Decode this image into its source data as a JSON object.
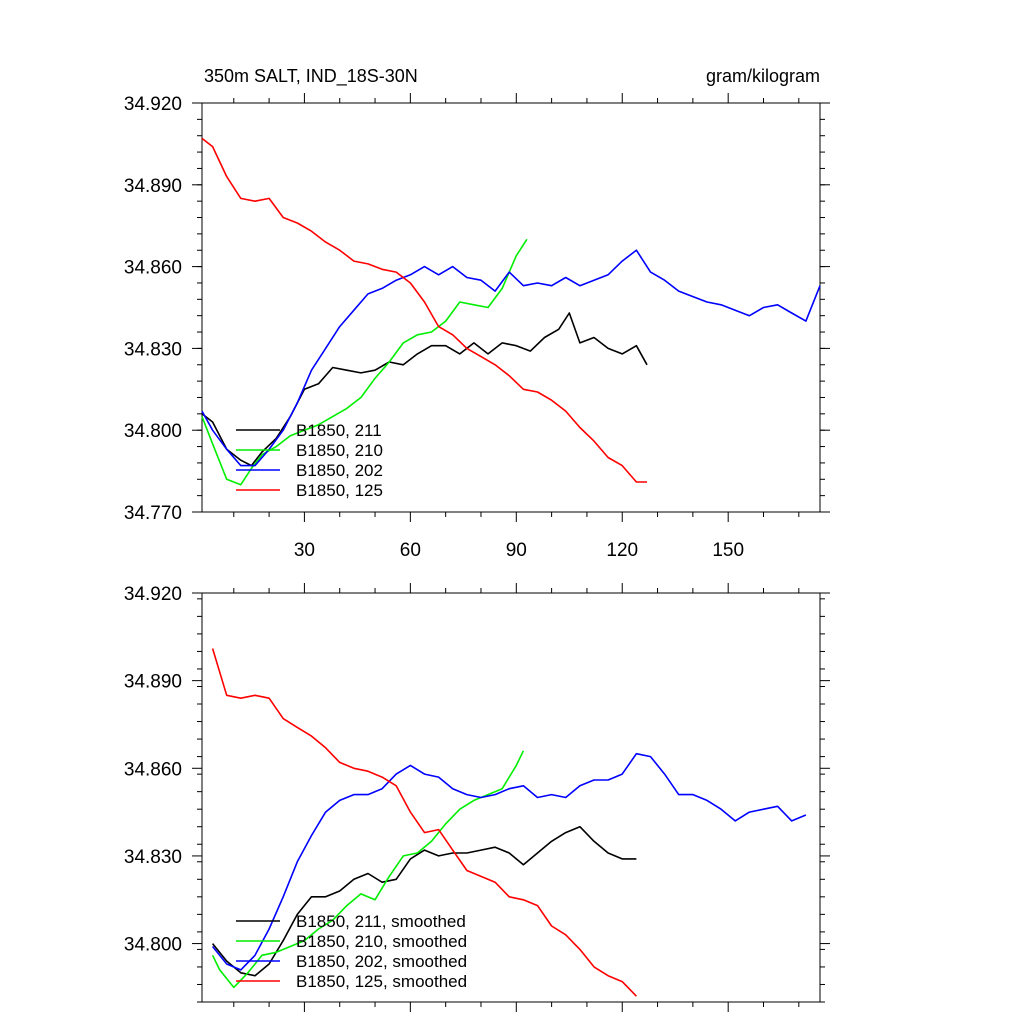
{
  "figure": {
    "title": "350m SALT, IND_18S-30N",
    "units": "gram/kilogram"
  },
  "colors": {
    "B1850_211": "#000000",
    "B1850_210": "#00ee00",
    "B1850_202": "#0000ff",
    "B1850_125": "#ff0000"
  },
  "chart_data": [
    {
      "type": "line",
      "panel": "top",
      "xlim": [
        1,
        176
      ],
      "ylim": [
        34.77,
        34.92
      ],
      "xticks": [
        30,
        60,
        90,
        120,
        150
      ],
      "xtick_labels": [
        "30",
        "60",
        "90",
        "120",
        "150"
      ],
      "yticks": [
        34.77,
        34.8,
        34.83,
        34.86,
        34.89,
        34.92
      ],
      "ytick_labels": [
        "34.770",
        "34.800",
        "34.830",
        "34.860",
        "34.890",
        "34.920"
      ],
      "legend_position": "bottom-left",
      "series": [
        {
          "name": "B1850, 211",
          "color": "#000000",
          "x": [
            1,
            4,
            8,
            12,
            15,
            18,
            22,
            26,
            30,
            34,
            38,
            42,
            46,
            50,
            54,
            58,
            62,
            66,
            70,
            74,
            78,
            82,
            86,
            90,
            94,
            98,
            102,
            105,
            108,
            112,
            116,
            120,
            124,
            127
          ],
          "y": [
            34.806,
            34.803,
            34.793,
            34.789,
            34.787,
            34.792,
            34.797,
            34.805,
            34.815,
            34.817,
            34.823,
            34.822,
            34.821,
            34.822,
            34.825,
            34.824,
            34.828,
            34.831,
            34.831,
            34.828,
            34.832,
            34.828,
            34.832,
            34.831,
            34.829,
            34.834,
            34.837,
            34.843,
            34.832,
            34.834,
            34.83,
            34.828,
            34.831,
            34.824
          ]
        },
        {
          "name": "B1850, 210",
          "color": "#00ee00",
          "x": [
            1,
            4,
            8,
            12,
            15,
            18,
            22,
            26,
            30,
            34,
            38,
            42,
            46,
            50,
            54,
            58,
            62,
            66,
            70,
            74,
            78,
            82,
            86,
            90,
            93
          ],
          "y": [
            34.805,
            34.795,
            34.782,
            34.78,
            34.786,
            34.791,
            34.794,
            34.798,
            34.8,
            34.802,
            34.805,
            34.808,
            34.812,
            34.819,
            34.825,
            34.832,
            34.835,
            34.836,
            34.84,
            34.847,
            34.846,
            34.845,
            34.852,
            34.864,
            34.87
          ]
        },
        {
          "name": "B1850, 202",
          "color": "#0000ff",
          "x": [
            1,
            4,
            8,
            12,
            16,
            20,
            24,
            28,
            32,
            36,
            40,
            44,
            48,
            52,
            56,
            60,
            64,
            68,
            72,
            76,
            80,
            84,
            88,
            92,
            96,
            100,
            104,
            108,
            112,
            116,
            120,
            124,
            128,
            132,
            136,
            140,
            144,
            148,
            152,
            156,
            160,
            164,
            168,
            172,
            176
          ],
          "y": [
            34.807,
            34.8,
            34.793,
            34.787,
            34.787,
            34.793,
            34.8,
            34.81,
            34.822,
            34.83,
            34.838,
            34.844,
            34.85,
            34.852,
            34.855,
            34.857,
            34.86,
            34.857,
            34.86,
            34.856,
            34.855,
            34.851,
            34.858,
            34.853,
            34.854,
            34.853,
            34.856,
            34.853,
            34.855,
            34.857,
            34.862,
            34.866,
            34.858,
            34.855,
            34.851,
            34.849,
            34.847,
            34.846,
            34.844,
            34.842,
            34.845,
            34.846,
            34.843,
            34.84,
            34.853
          ]
        },
        {
          "name": "B1850, 125",
          "color": "#ff0000",
          "x": [
            1,
            4,
            8,
            12,
            16,
            20,
            24,
            28,
            32,
            36,
            40,
            44,
            48,
            52,
            56,
            60,
            64,
            68,
            72,
            76,
            80,
            84,
            88,
            92,
            96,
            100,
            104,
            108,
            112,
            116,
            120,
            124,
            127
          ],
          "y": [
            34.907,
            34.904,
            34.893,
            34.885,
            34.884,
            34.885,
            34.878,
            34.876,
            34.873,
            34.869,
            34.866,
            34.862,
            34.861,
            34.859,
            34.858,
            34.854,
            34.847,
            34.838,
            34.835,
            34.83,
            34.827,
            34.824,
            34.82,
            34.815,
            34.814,
            34.811,
            34.807,
            34.801,
            34.796,
            34.79,
            34.787,
            34.781,
            34.781
          ]
        }
      ]
    },
    {
      "type": "line",
      "panel": "bottom",
      "xlim": [
        1,
        176
      ],
      "ylim": [
        34.78,
        34.92
      ],
      "xticks": [
        30,
        60,
        90,
        120,
        150
      ],
      "yticks": [
        34.8,
        34.83,
        34.86,
        34.89,
        34.92
      ],
      "ytick_labels": [
        "34.800",
        "34.830",
        "34.860",
        "34.890",
        "34.920"
      ],
      "legend_position": "bottom-left",
      "series": [
        {
          "name": "B1850, 211, smoothed",
          "color": "#000000",
          "x": [
            4,
            8,
            12,
            16,
            20,
            24,
            28,
            32,
            36,
            40,
            44,
            48,
            52,
            56,
            60,
            64,
            68,
            72,
            76,
            80,
            84,
            88,
            92,
            96,
            100,
            104,
            108,
            112,
            116,
            120,
            124
          ],
          "y": [
            34.8,
            34.794,
            34.79,
            34.789,
            34.793,
            34.801,
            34.81,
            34.816,
            34.816,
            34.818,
            34.822,
            34.824,
            34.821,
            34.822,
            34.829,
            34.832,
            34.83,
            34.831,
            34.831,
            34.832,
            34.833,
            34.831,
            34.827,
            34.831,
            34.835,
            34.838,
            34.84,
            34.835,
            34.831,
            34.829,
            34.829
          ]
        },
        {
          "name": "B1850, 210, smoothed",
          "color": "#00ee00",
          "x": [
            4,
            6,
            10,
            14,
            18,
            22,
            26,
            30,
            34,
            38,
            42,
            46,
            50,
            54,
            58,
            62,
            66,
            70,
            74,
            78,
            82,
            86,
            90,
            92
          ],
          "y": [
            34.796,
            34.791,
            34.785,
            34.79,
            34.796,
            34.797,
            34.799,
            34.801,
            34.805,
            34.808,
            34.813,
            34.817,
            34.815,
            34.823,
            34.83,
            34.831,
            34.835,
            34.841,
            34.846,
            34.849,
            34.851,
            34.853,
            34.861,
            34.866
          ]
        },
        {
          "name": "B1850, 202, smoothed",
          "color": "#0000ff",
          "x": [
            4,
            8,
            12,
            16,
            20,
            24,
            28,
            32,
            36,
            40,
            44,
            48,
            52,
            56,
            60,
            64,
            68,
            72,
            76,
            80,
            84,
            88,
            92,
            96,
            100,
            104,
            108,
            112,
            116,
            120,
            124,
            128,
            132,
            136,
            140,
            144,
            148,
            152,
            156,
            160,
            164,
            168,
            172
          ],
          "y": [
            34.799,
            34.793,
            34.791,
            34.796,
            34.805,
            34.816,
            34.828,
            34.837,
            34.845,
            34.849,
            34.851,
            34.851,
            34.853,
            34.858,
            34.861,
            34.858,
            34.857,
            34.853,
            34.851,
            34.85,
            34.851,
            34.853,
            34.854,
            34.85,
            34.851,
            34.85,
            34.854,
            34.856,
            34.856,
            34.858,
            34.865,
            34.864,
            34.858,
            34.851,
            34.851,
            34.849,
            34.846,
            34.842,
            34.845,
            34.846,
            34.847,
            34.842,
            34.844
          ]
        },
        {
          "name": "B1850, 125, smoothed",
          "color": "#ff0000",
          "x": [
            4,
            8,
            12,
            16,
            20,
            24,
            28,
            32,
            36,
            40,
            44,
            48,
            52,
            56,
            60,
            64,
            68,
            72,
            76,
            80,
            84,
            88,
            92,
            96,
            100,
            104,
            108,
            112,
            116,
            120,
            124
          ],
          "y": [
            34.901,
            34.885,
            34.884,
            34.885,
            34.884,
            34.877,
            34.874,
            34.871,
            34.867,
            34.862,
            34.86,
            34.859,
            34.857,
            34.854,
            34.845,
            34.838,
            34.839,
            34.832,
            34.825,
            34.823,
            34.821,
            34.816,
            34.815,
            34.813,
            34.806,
            34.803,
            34.798,
            34.792,
            34.789,
            34.787,
            34.782
          ]
        }
      ]
    }
  ]
}
